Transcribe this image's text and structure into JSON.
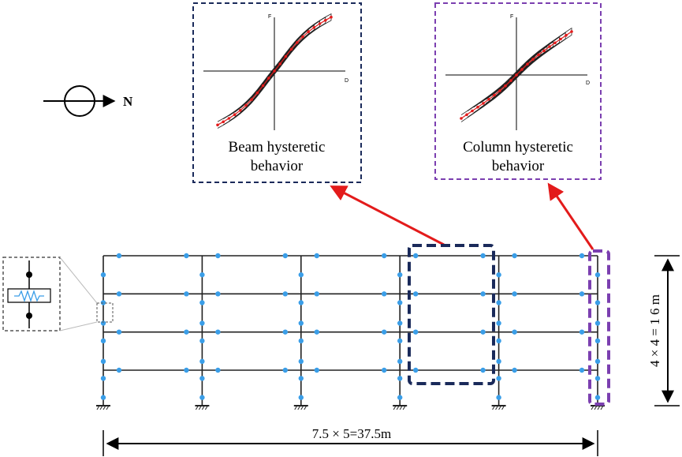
{
  "compass": {
    "label": "N"
  },
  "insets": {
    "beam": {
      "caption_line1": "Beam hysteretic",
      "caption_line2": "behavior",
      "axis_f": "F",
      "axis_d": "D"
    },
    "column": {
      "caption_line1": "Column hysteretic",
      "caption_line2": "behavior",
      "axis_f": "F",
      "axis_d": "D"
    }
  },
  "frame": {
    "bays": 5,
    "stories": 4,
    "width_label": "7.5 × 5=37.5m",
    "height_label": "4 × 4 = 1 6 m"
  },
  "colors": {
    "node": "#3a9ee8",
    "beam_box": "#1a2a5a",
    "column_box": "#7b3fb0",
    "arrow": "#e31b1b",
    "line": "#222222",
    "spring": "#3a9ee8",
    "hysteresis_marker": "#e31b1b"
  }
}
